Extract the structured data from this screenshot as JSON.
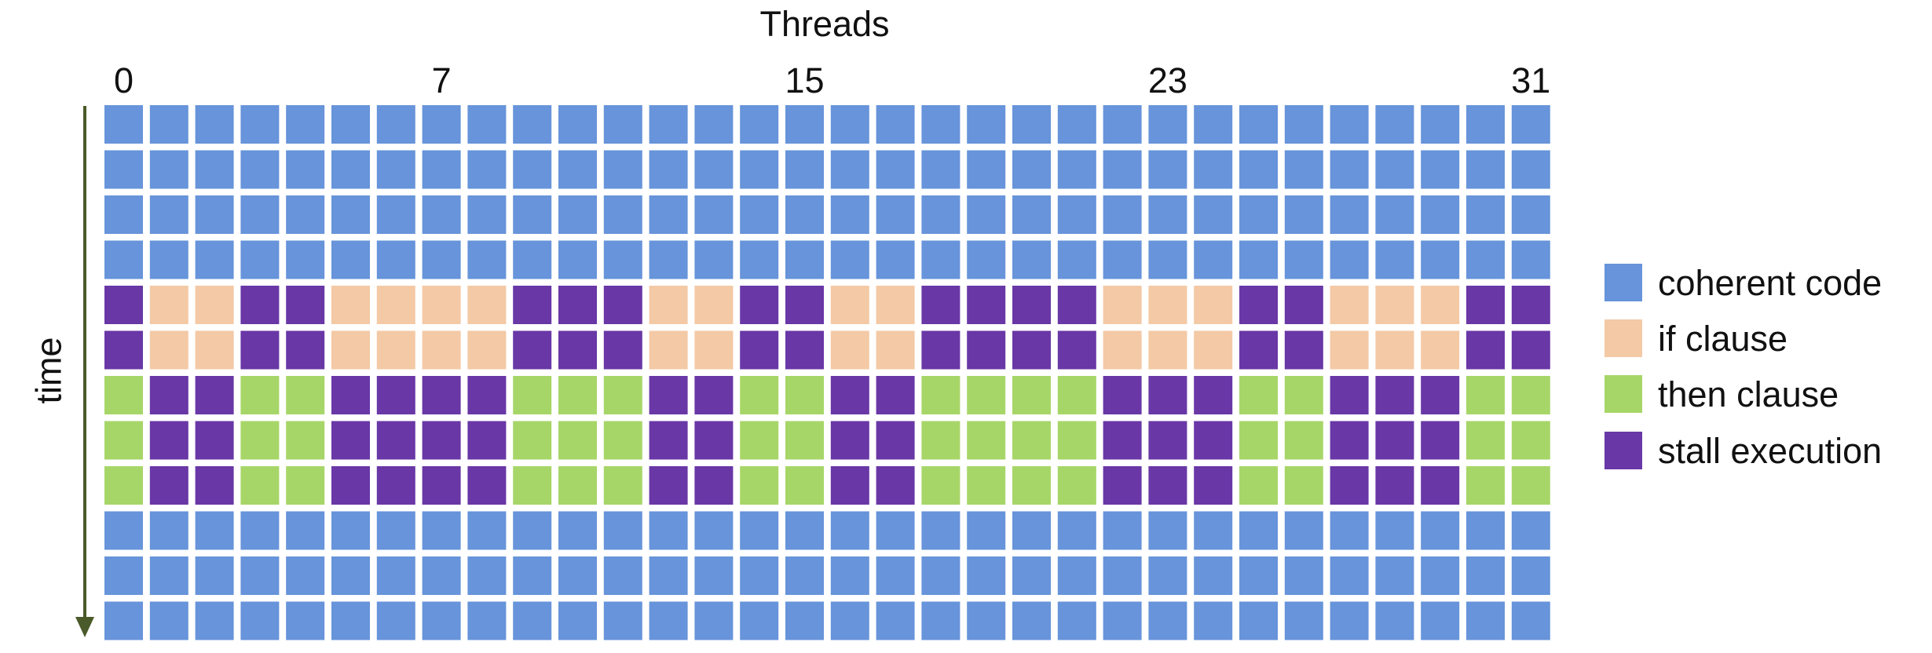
{
  "title": "Threads",
  "ylabel": "time",
  "colors": {
    "coherent": "#6794da",
    "if": "#f4c9a5",
    "then": "#a7d668",
    "stall": "#6937a6",
    "arrow": "#4b5a2a"
  },
  "thread_ticks": [
    {
      "thread": 0,
      "label": "0"
    },
    {
      "thread": 7,
      "label": "7"
    },
    {
      "thread": 15,
      "label": "15"
    },
    {
      "thread": 23,
      "label": "23"
    },
    {
      "thread": 31,
      "label": "31"
    }
  ],
  "legend": [
    {
      "key": "coherent",
      "label": "coherent code"
    },
    {
      "key": "if",
      "label": "if clause"
    },
    {
      "key": "then",
      "label": "then clause"
    },
    {
      "key": "stall",
      "label": "stall execution"
    }
  ],
  "chart_data": {
    "type": "heatmap",
    "columns": 32,
    "rows": [
      "CCCCCCCCCCCCCCCCCCCCCCCCCCCCCCCC",
      "CCCCCCCCCCCCCCCCCCCCCCCCCCCCCCCC",
      "CCCCCCCCCCCCCCCCCCCCCCCCCCCCCCCC",
      "CCCCCCCCCCCCCCCCCCCCCCCCCCCCCCCC",
      "SIISSIIIISSSIISSIISSSSIIISSIIISS",
      "SIISSIIIISSSIISSIISSSSIIISSIIISS",
      "TSSTTSSSSTTTSSTTSSTTTTSSSTTSSSTT",
      "TSSTTSSSSTTTSSTTSSTTTTSSSTTSSSTT",
      "TSSTTSSSSTTTSSTTSSTTTTSSSTTSSSTT",
      "CCCCCCCCCCCCCCCCCCCCCCCCCCCCCCCC",
      "CCCCCCCCCCCCCCCCCCCCCCCCCCCCCCCC",
      "CCCCCCCCCCCCCCCCCCCCCCCCCCCCCCCC"
    ],
    "codes": {
      "C": "coherent",
      "I": "if",
      "T": "then",
      "S": "stall"
    }
  }
}
